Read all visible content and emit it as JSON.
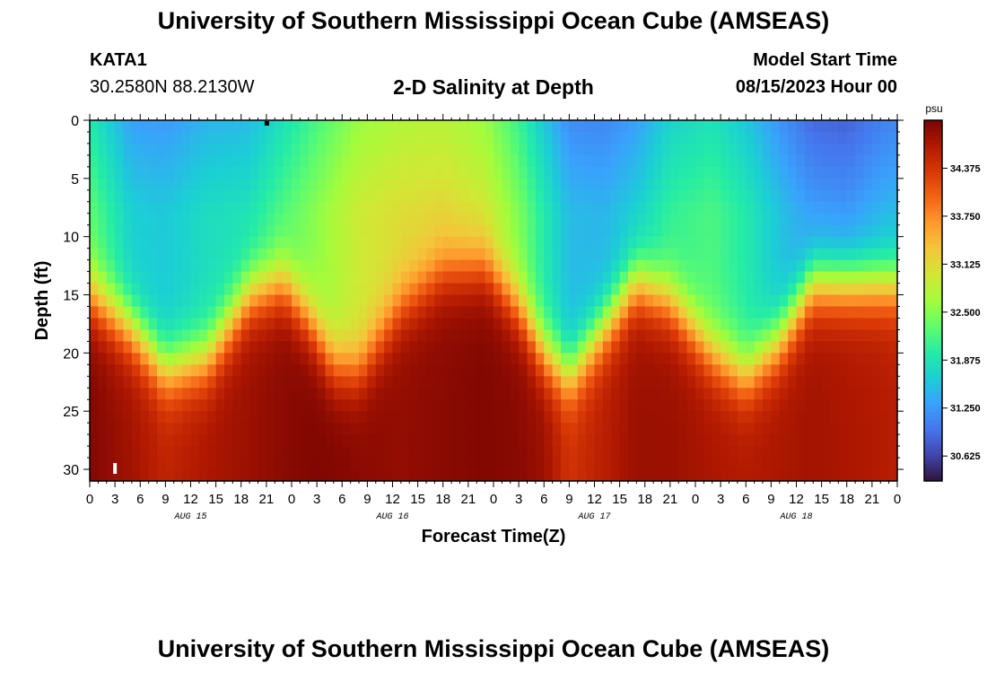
{
  "header": {
    "title": "University of Southern Mississippi Ocean Cube (AMSEAS)",
    "station": "KATA1",
    "coords": "30.2580N  88.2130W",
    "subtitle": "2-D Salinity at Depth",
    "model_start_label": "Model Start Time",
    "model_start_value": "08/15/2023 Hour 00"
  },
  "footer": {
    "title": "University of Southern Mississippi Ocean Cube (AMSEAS)"
  },
  "chart_data": {
    "type": "heatmap",
    "title": "2-D Salinity at Depth",
    "xlabel": "Forecast Time(Z)",
    "ylabel": "Depth (ft)",
    "x_range_hours": [
      0,
      96
    ],
    "x_tick_labels": [
      "0",
      "3",
      "6",
      "9",
      "12",
      "15",
      "18",
      "21",
      "0",
      "3",
      "6",
      "9",
      "12",
      "15",
      "18",
      "21",
      "0",
      "3",
      "6",
      "9",
      "12",
      "15",
      "18",
      "21",
      "0",
      "3",
      "6",
      "9",
      "12",
      "15",
      "18",
      "21",
      "0"
    ],
    "date_labels": [
      {
        "hour": 12,
        "label": "AUG 15"
      },
      {
        "hour": 36,
        "label": "AUG 16"
      },
      {
        "hour": 60,
        "label": "AUG 17"
      },
      {
        "hour": 84,
        "label": "AUG 18"
      }
    ],
    "y_range": [
      0,
      31
    ],
    "y_ticks": [
      0,
      5,
      10,
      15,
      20,
      25,
      30
    ],
    "colorbar": {
      "unit": "psu",
      "range": [
        30.3,
        35.0
      ],
      "tick_values": [
        34.375,
        33.75,
        33.125,
        32.5,
        31.875,
        31.25,
        30.625
      ],
      "tick_labels": [
        "34.375",
        "33.750",
        "33.125",
        "32.500",
        "31.875",
        "31.250",
        "30.625"
      ],
      "colors": [
        "#30123b",
        "#4145ab",
        "#4675ed",
        "#39a2fc",
        "#1bcfd4",
        "#24eca6",
        "#61fc6c",
        "#a4fc3b",
        "#d1e834",
        "#f3c63a",
        "#fe9b2d",
        "#f36315",
        "#d93806",
        "#b11901",
        "#7a0402"
      ]
    },
    "time_series": {
      "hours": [
        0,
        5,
        9,
        14,
        19,
        23,
        26,
        29,
        32,
        37,
        42,
        47,
        51,
        54,
        57,
        61,
        65,
        69,
        74,
        78,
        82,
        86,
        90,
        94,
        96
      ],
      "halocline_depth_ft": [
        15,
        18,
        21.5,
        20.5,
        15,
        14,
        17,
        21,
        21.5,
        16,
        13,
        12.5,
        16,
        20,
        22,
        18,
        14,
        15.5,
        20,
        22,
        19,
        14,
        14,
        14,
        14
      ],
      "surface_salinity_psu": [
        31.95,
        31.3,
        31.25,
        31.45,
        31.5,
        31.85,
        32.1,
        32.35,
        32.6,
        32.75,
        32.8,
        32.6,
        32.1,
        31.6,
        31.15,
        31.1,
        31.3,
        31.7,
        31.85,
        31.6,
        31.2,
        30.9,
        30.85,
        31.05,
        31.1
      ],
      "bottom_salinity_psu": [
        34.95,
        34.75,
        34.55,
        34.7,
        34.8,
        34.9,
        34.95,
        34.95,
        34.9,
        34.85,
        34.9,
        34.95,
        34.9,
        34.8,
        34.4,
        34.6,
        34.8,
        34.8,
        34.7,
        34.65,
        34.7,
        34.75,
        34.7,
        34.65,
        34.6
      ]
    },
    "annotations": [
      {
        "type": "marker",
        "hour": 3,
        "depth_ft": 30,
        "color": "#ffffff"
      },
      {
        "type": "marker",
        "hour": 21,
        "depth_ft": 0,
        "color": "#000000"
      }
    ]
  }
}
